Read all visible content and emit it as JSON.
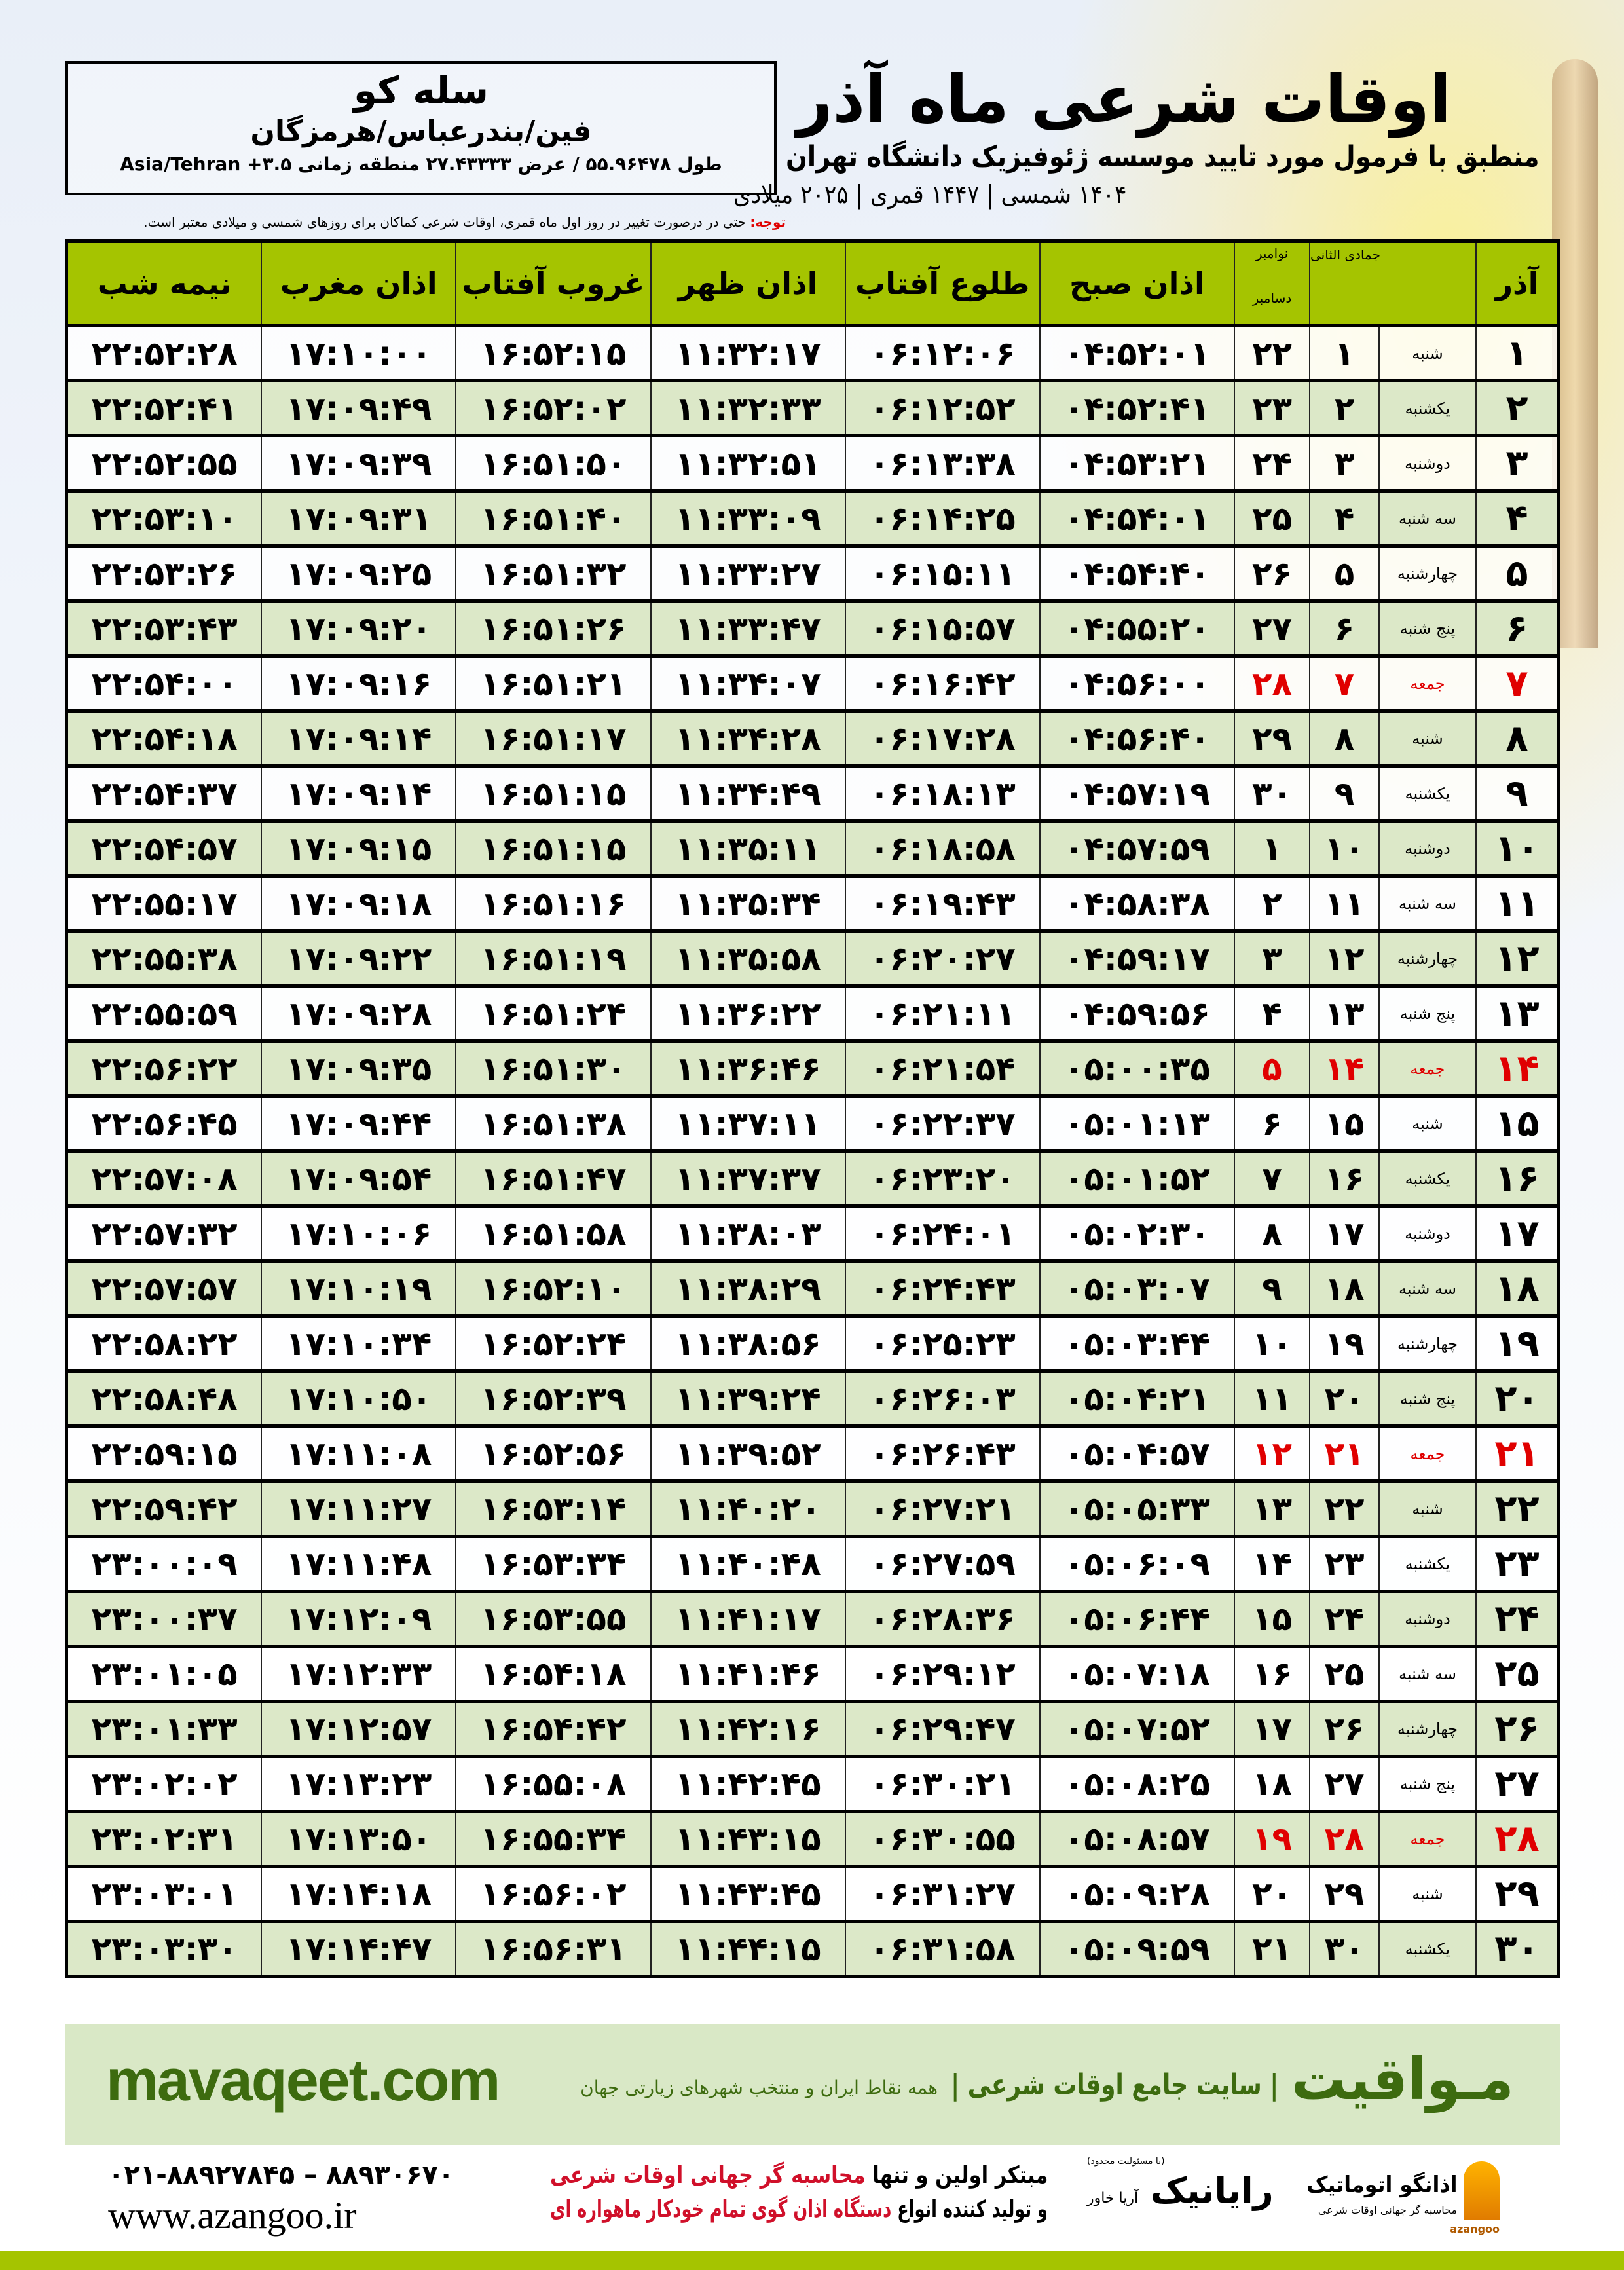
{
  "location": {
    "city": "سله کو",
    "province": "فین/بندرعباس/هرمزگان",
    "coords": "طول ۵۵.۹۶۴۷۸ / عرض ۲۷.۴۳۳۳۳ منطقه زمانی ۳.۵+ Asia/Tehran"
  },
  "header": {
    "title": "اوقات شرعی ماه آذر",
    "subtitle": "منطبق با فرمول مورد تایید موسسه ژئوفیزیک دانشگاه تهران",
    "dates": "۱۴۰۴ شمسی | ۱۴۴۷ قمری | ۲۰۲۵ میلادی",
    "note_label": "توجه:",
    "note_text": " حتی در درصورت تغییر در روز اول ماه قمری، اوقات شرعی کماکان برای روزهای شمسی و میلادی معتبر است."
  },
  "table": {
    "columns": {
      "month": "آذر",
      "hijri": "جمادی الثانی",
      "greg_top": "نوامبر",
      "greg_bottom": "دسامبر",
      "fajr": "اذان صبح",
      "sunrise": "طلوع آفتاب",
      "dhuhr": "اذان ظهر",
      "sunset": "غروب آفتاب",
      "maghrib": "اذان مغرب",
      "midnight": "نیمه شب"
    },
    "holiday_color": "#e00000",
    "header_color": "#a5c400",
    "rows": [
      [
        "۱",
        "شنبه",
        "۱",
        "۲۲",
        "۰۴:۵۲:۰۱",
        "۰۶:۱۲:۰۶",
        "۱۱:۳۲:۱۷",
        "۱۶:۵۲:۱۵",
        "۱۷:۱۰:۰۰",
        "۲۲:۵۲:۲۸",
        false
      ],
      [
        "۲",
        "یکشنبه",
        "۲",
        "۲۳",
        "۰۴:۵۲:۴۱",
        "۰۶:۱۲:۵۲",
        "۱۱:۳۲:۳۳",
        "۱۶:۵۲:۰۲",
        "۱۷:۰۹:۴۹",
        "۲۲:۵۲:۴۱",
        false
      ],
      [
        "۳",
        "دوشنبه",
        "۳",
        "۲۴",
        "۰۴:۵۳:۲۱",
        "۰۶:۱۳:۳۸",
        "۱۱:۳۲:۵۱",
        "۱۶:۵۱:۵۰",
        "۱۷:۰۹:۳۹",
        "۲۲:۵۲:۵۵",
        false
      ],
      [
        "۴",
        "سه شنبه",
        "۴",
        "۲۵",
        "۰۴:۵۴:۰۱",
        "۰۶:۱۴:۲۵",
        "۱۱:۳۳:۰۹",
        "۱۶:۵۱:۴۰",
        "۱۷:۰۹:۳۱",
        "۲۲:۵۳:۱۰",
        false
      ],
      [
        "۵",
        "چهارشنبه",
        "۵",
        "۲۶",
        "۰۴:۵۴:۴۰",
        "۰۶:۱۵:۱۱",
        "۱۱:۳۳:۲۷",
        "۱۶:۵۱:۳۲",
        "۱۷:۰۹:۲۵",
        "۲۲:۵۳:۲۶",
        false
      ],
      [
        "۶",
        "پنج شنبه",
        "۶",
        "۲۷",
        "۰۴:۵۵:۲۰",
        "۰۶:۱۵:۵۷",
        "۱۱:۳۳:۴۷",
        "۱۶:۵۱:۲۶",
        "۱۷:۰۹:۲۰",
        "۲۲:۵۳:۴۳",
        false
      ],
      [
        "۷",
        "جمعه",
        "۷",
        "۲۸",
        "۰۴:۵۶:۰۰",
        "۰۶:۱۶:۴۲",
        "۱۱:۳۴:۰۷",
        "۱۶:۵۱:۲۱",
        "۱۷:۰۹:۱۶",
        "۲۲:۵۴:۰۰",
        true
      ],
      [
        "۸",
        "شنبه",
        "۸",
        "۲۹",
        "۰۴:۵۶:۴۰",
        "۰۶:۱۷:۲۸",
        "۱۱:۳۴:۲۸",
        "۱۶:۵۱:۱۷",
        "۱۷:۰۹:۱۴",
        "۲۲:۵۴:۱۸",
        false
      ],
      [
        "۹",
        "یکشنبه",
        "۹",
        "۳۰",
        "۰۴:۵۷:۱۹",
        "۰۶:۱۸:۱۳",
        "۱۱:۳۴:۴۹",
        "۱۶:۵۱:۱۵",
        "۱۷:۰۹:۱۴",
        "۲۲:۵۴:۳۷",
        false
      ],
      [
        "۱۰",
        "دوشنبه",
        "۱۰",
        "۱",
        "۰۴:۵۷:۵۹",
        "۰۶:۱۸:۵۸",
        "۱۱:۳۵:۱۱",
        "۱۶:۵۱:۱۵",
        "۱۷:۰۹:۱۵",
        "۲۲:۵۴:۵۷",
        false
      ],
      [
        "۱۱",
        "سه شنبه",
        "۱۱",
        "۲",
        "۰۴:۵۸:۳۸",
        "۰۶:۱۹:۴۳",
        "۱۱:۳۵:۳۴",
        "۱۶:۵۱:۱۶",
        "۱۷:۰۹:۱۸",
        "۲۲:۵۵:۱۷",
        false
      ],
      [
        "۱۲",
        "چهارشنبه",
        "۱۲",
        "۳",
        "۰۴:۵۹:۱۷",
        "۰۶:۲۰:۲۷",
        "۱۱:۳۵:۵۸",
        "۱۶:۵۱:۱۹",
        "۱۷:۰۹:۲۲",
        "۲۲:۵۵:۳۸",
        false
      ],
      [
        "۱۳",
        "پنج شنبه",
        "۱۳",
        "۴",
        "۰۴:۵۹:۵۶",
        "۰۶:۲۱:۱۱",
        "۱۱:۳۶:۲۲",
        "۱۶:۵۱:۲۴",
        "۱۷:۰۹:۲۸",
        "۲۲:۵۵:۵۹",
        false
      ],
      [
        "۱۴",
        "جمعه",
        "۱۴",
        "۵",
        "۰۵:۰۰:۳۵",
        "۰۶:۲۱:۵۴",
        "۱۱:۳۶:۴۶",
        "۱۶:۵۱:۳۰",
        "۱۷:۰۹:۳۵",
        "۲۲:۵۶:۲۲",
        true
      ],
      [
        "۱۵",
        "شنبه",
        "۱۵",
        "۶",
        "۰۵:۰۱:۱۳",
        "۰۶:۲۲:۳۷",
        "۱۱:۳۷:۱۱",
        "۱۶:۵۱:۳۸",
        "۱۷:۰۹:۴۴",
        "۲۲:۵۶:۴۵",
        false
      ],
      [
        "۱۶",
        "یکشنبه",
        "۱۶",
        "۷",
        "۰۵:۰۱:۵۲",
        "۰۶:۲۳:۲۰",
        "۱۱:۳۷:۳۷",
        "۱۶:۵۱:۴۷",
        "۱۷:۰۹:۵۴",
        "۲۲:۵۷:۰۸",
        false
      ],
      [
        "۱۷",
        "دوشنبه",
        "۱۷",
        "۸",
        "۰۵:۰۲:۳۰",
        "۰۶:۲۴:۰۱",
        "۱۱:۳۸:۰۳",
        "۱۶:۵۱:۵۸",
        "۱۷:۱۰:۰۶",
        "۲۲:۵۷:۳۲",
        false
      ],
      [
        "۱۸",
        "سه شنبه",
        "۱۸",
        "۹",
        "۰۵:۰۳:۰۷",
        "۰۶:۲۴:۴۳",
        "۱۱:۳۸:۲۹",
        "۱۶:۵۲:۱۰",
        "۱۷:۱۰:۱۹",
        "۲۲:۵۷:۵۷",
        false
      ],
      [
        "۱۹",
        "چهارشنبه",
        "۱۹",
        "۱۰",
        "۰۵:۰۳:۴۴",
        "۰۶:۲۵:۲۳",
        "۱۱:۳۸:۵۶",
        "۱۶:۵۲:۲۴",
        "۱۷:۱۰:۳۴",
        "۲۲:۵۸:۲۲",
        false
      ],
      [
        "۲۰",
        "پنج شنبه",
        "۲۰",
        "۱۱",
        "۰۵:۰۴:۲۱",
        "۰۶:۲۶:۰۳",
        "۱۱:۳۹:۲۴",
        "۱۶:۵۲:۳۹",
        "۱۷:۱۰:۵۰",
        "۲۲:۵۸:۴۸",
        false
      ],
      [
        "۲۱",
        "جمعه",
        "۲۱",
        "۱۲",
        "۰۵:۰۴:۵۷",
        "۰۶:۲۶:۴۳",
        "۱۱:۳۹:۵۲",
        "۱۶:۵۲:۵۶",
        "۱۷:۱۱:۰۸",
        "۲۲:۵۹:۱۵",
        true
      ],
      [
        "۲۲",
        "شنبه",
        "۲۲",
        "۱۳",
        "۰۵:۰۵:۳۳",
        "۰۶:۲۷:۲۱",
        "۱۱:۴۰:۲۰",
        "۱۶:۵۳:۱۴",
        "۱۷:۱۱:۲۷",
        "۲۲:۵۹:۴۲",
        false
      ],
      [
        "۲۳",
        "یکشنبه",
        "۲۳",
        "۱۴",
        "۰۵:۰۶:۰۹",
        "۰۶:۲۷:۵۹",
        "۱۱:۴۰:۴۸",
        "۱۶:۵۳:۳۴",
        "۱۷:۱۱:۴۸",
        "۲۳:۰۰:۰۹",
        false
      ],
      [
        "۲۴",
        "دوشنبه",
        "۲۴",
        "۱۵",
        "۰۵:۰۶:۴۴",
        "۰۶:۲۸:۳۶",
        "۱۱:۴۱:۱۷",
        "۱۶:۵۳:۵۵",
        "۱۷:۱۲:۰۹",
        "۲۳:۰۰:۳۷",
        false
      ],
      [
        "۲۵",
        "سه شنبه",
        "۲۵",
        "۱۶",
        "۰۵:۰۷:۱۸",
        "۰۶:۲۹:۱۲",
        "۱۱:۴۱:۴۶",
        "۱۶:۵۴:۱۸",
        "۱۷:۱۲:۳۳",
        "۲۳:۰۱:۰۵",
        false
      ],
      [
        "۲۶",
        "چهارشنبه",
        "۲۶",
        "۱۷",
        "۰۵:۰۷:۵۲",
        "۰۶:۲۹:۴۷",
        "۱۱:۴۲:۱۶",
        "۱۶:۵۴:۴۲",
        "۱۷:۱۲:۵۷",
        "۲۳:۰۱:۳۳",
        false
      ],
      [
        "۲۷",
        "پنج شنبه",
        "۲۷",
        "۱۸",
        "۰۵:۰۸:۲۵",
        "۰۶:۳۰:۲۱",
        "۱۱:۴۲:۴۵",
        "۱۶:۵۵:۰۸",
        "۱۷:۱۳:۲۳",
        "۲۳:۰۲:۰۲",
        false
      ],
      [
        "۲۸",
        "جمعه",
        "۲۸",
        "۱۹",
        "۰۵:۰۸:۵۷",
        "۰۶:۳۰:۵۵",
        "۱۱:۴۳:۱۵",
        "۱۶:۵۵:۳۴",
        "۱۷:۱۳:۵۰",
        "۲۳:۰۲:۳۱",
        true
      ],
      [
        "۲۹",
        "شنبه",
        "۲۹",
        "۲۰",
        "۰۵:۰۹:۲۸",
        "۰۶:۳۱:۲۷",
        "۱۱:۴۳:۴۵",
        "۱۶:۵۶:۰۲",
        "۱۷:۱۴:۱۸",
        "۲۳:۰۳:۰۱",
        false
      ],
      [
        "۳۰",
        "یکشنبه",
        "۳۰",
        "۲۱",
        "۰۵:۰۹:۵۹",
        "۰۶:۳۱:۵۸",
        "۱۱:۴۴:۱۵",
        "۱۶:۵۶:۳۱",
        "۱۷:۱۴:۴۷",
        "۲۳:۰۳:۳۰",
        false
      ]
    ]
  },
  "promo": {
    "brand": "مـواقیت",
    "tagline": "| سایت جامع اوقات شرعی |",
    "tagline2": "همه نقاط ایران و منتخب شهرهای زیارتی جهان",
    "site": "mavaqeet.com",
    "bg_color": "#d9e8c6",
    "text_color": "#3d6b0f"
  },
  "footer": {
    "phone": "۰۲۱-۸۸۹۲۷۸۴۵ – ۸۸۹۳۰۶۷۰",
    "web": "www.azangoo.ir",
    "line1_a": "مبتکر اولین و تنها ",
    "line1_b": "محاسبه گر جهانی اوقات شرعی",
    "line2_a": "و تولید کننده انواع ",
    "line2_b": "دستگاه اذان گوی تمام خودکار ماهواره ای",
    "rayanik": "رایانیک",
    "rayanik_sub": "آریا خاور",
    "rayanik_sup": "(با مسئولیت محدود)",
    "azangoo_name": "اذانگو اتوماتیک",
    "azangoo_sub": "محاسبه گر جهانی اوقات شرعی",
    "azangoo_en": "azangoo"
  }
}
